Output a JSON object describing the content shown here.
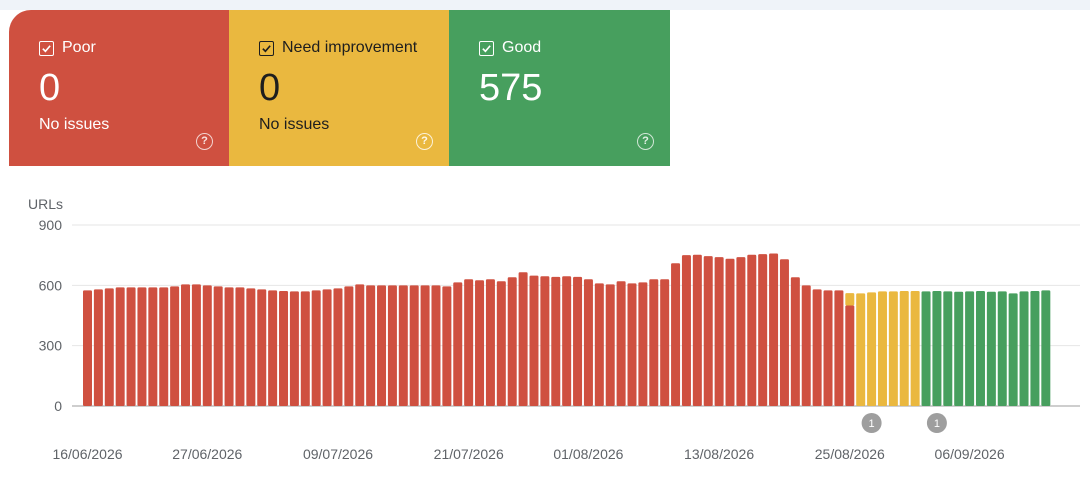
{
  "cards": [
    {
      "key": "poor",
      "label": "Poor",
      "value": "0",
      "sub": "No issues",
      "help": "?"
    },
    {
      "key": "need",
      "label": "Need improvement",
      "value": "0",
      "sub": "No issues",
      "help": "?"
    },
    {
      "key": "good",
      "label": "Good",
      "value": "575",
      "sub": "",
      "help": "?"
    }
  ],
  "colors": {
    "poor": "#cf5040",
    "need": "#eab83f",
    "good": "#479f5e",
    "grid": "#e6e6e6",
    "axis": "#9e9e9e",
    "annotation": "#9e9e9e"
  },
  "chart_data": {
    "type": "bar",
    "ylabel": "URLs",
    "ylim": [
      0,
      900
    ],
    "yticks": [
      "0",
      "300",
      "600",
      "900"
    ],
    "xtick_labels": [
      "16/06/2026",
      "27/06/2026",
      "09/07/2026",
      "21/07/2026",
      "01/08/2026",
      "13/08/2026",
      "25/08/2026",
      "06/09/2026"
    ],
    "xtick_bar_index": [
      0,
      11,
      23,
      35,
      46,
      58,
      70,
      81
    ],
    "first_date": "16/06/2026",
    "annotations": [
      {
        "label": "1",
        "bar_index": 72
      },
      {
        "label": "1",
        "bar_index": 78
      }
    ],
    "series": [
      {
        "name": "Poor",
        "color_key": "poor",
        "values": [
          575,
          580,
          585,
          590,
          590,
          590,
          590,
          590,
          595,
          605,
          605,
          600,
          595,
          590,
          590,
          585,
          580,
          575,
          572,
          570,
          570,
          575,
          580,
          585,
          595,
          605,
          600,
          600,
          600,
          600,
          600,
          600,
          600,
          595,
          615,
          630,
          625,
          630,
          620,
          640,
          665,
          648,
          645,
          642,
          645,
          642,
          630,
          610,
          605,
          620,
          610,
          615,
          630,
          630,
          710,
          750,
          752,
          745,
          740,
          732,
          740,
          752,
          755,
          758,
          730,
          640,
          600,
          580,
          575,
          575,
          500,
          0,
          0,
          0,
          0,
          0,
          0,
          0,
          0,
          0,
          0,
          0,
          0,
          0,
          0,
          0,
          0,
          0,
          0
        ]
      },
      {
        "name": "Need improvement",
        "color_key": "need",
        "values": [
          0,
          0,
          0,
          0,
          0,
          0,
          0,
          0,
          0,
          0,
          0,
          0,
          0,
          0,
          0,
          0,
          0,
          0,
          0,
          0,
          0,
          0,
          0,
          0,
          0,
          0,
          0,
          0,
          0,
          0,
          0,
          0,
          0,
          0,
          0,
          0,
          0,
          0,
          0,
          0,
          0,
          0,
          0,
          0,
          0,
          0,
          0,
          0,
          0,
          0,
          0,
          0,
          0,
          0,
          0,
          0,
          0,
          0,
          0,
          0,
          0,
          0,
          0,
          0,
          0,
          0,
          0,
          0,
          0,
          0,
          65,
          560,
          565,
          570,
          570,
          572,
          572,
          0,
          0,
          0,
          0,
          0,
          0,
          0,
          0,
          0,
          0,
          0,
          0
        ]
      },
      {
        "name": "Good",
        "color_key": "good",
        "values": [
          0,
          0,
          0,
          0,
          0,
          0,
          0,
          0,
          0,
          0,
          0,
          0,
          0,
          0,
          0,
          0,
          0,
          0,
          0,
          0,
          0,
          0,
          0,
          0,
          0,
          0,
          0,
          0,
          0,
          0,
          0,
          0,
          0,
          0,
          0,
          0,
          0,
          0,
          0,
          0,
          0,
          0,
          0,
          0,
          0,
          0,
          0,
          0,
          0,
          0,
          0,
          0,
          0,
          0,
          0,
          0,
          0,
          0,
          0,
          0,
          0,
          0,
          0,
          0,
          0,
          0,
          0,
          0,
          0,
          0,
          0,
          0,
          0,
          0,
          0,
          0,
          0,
          570,
          572,
          570,
          568,
          570,
          572,
          568,
          570,
          560,
          570,
          572,
          575
        ]
      }
    ]
  }
}
